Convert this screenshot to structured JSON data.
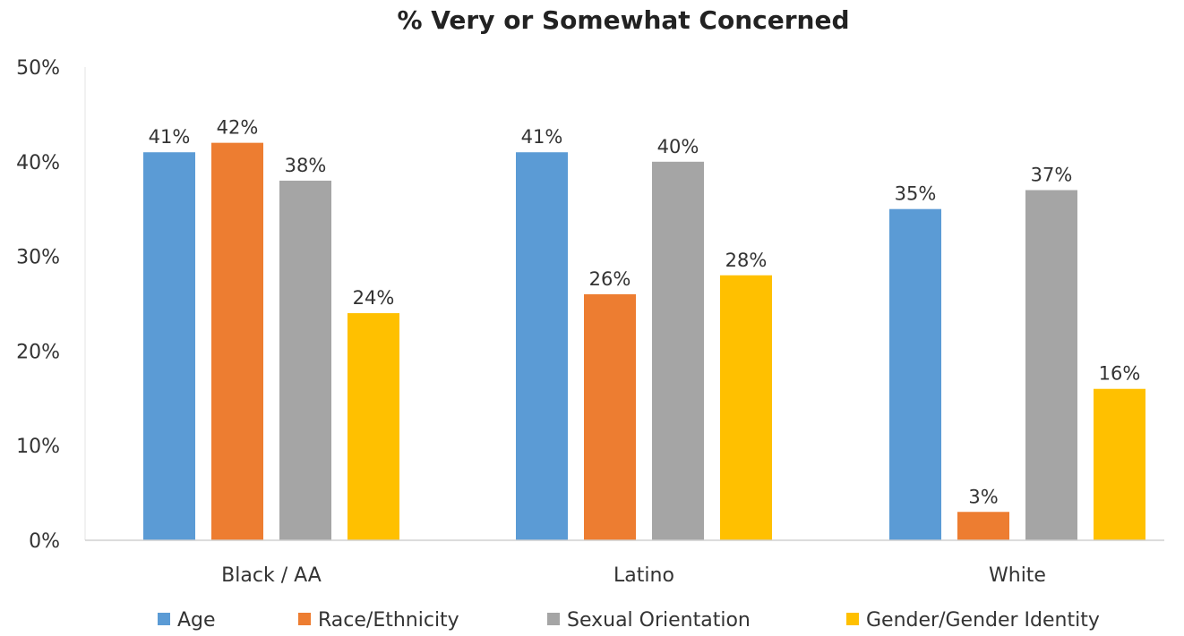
{
  "chart_data": {
    "type": "bar",
    "title": "% Very or Somewhat Concerned",
    "categories": [
      "Black / AA",
      "Latino",
      "White"
    ],
    "series": [
      {
        "name": "Age",
        "color": "#5B9BD5",
        "values": [
          41,
          41,
          35
        ]
      },
      {
        "name": "Race/Ethnicity",
        "color": "#ED7D31",
        "values": [
          42,
          26,
          3
        ]
      },
      {
        "name": "Sexual Orientation",
        "color": "#A5A5A5",
        "values": [
          38,
          40,
          37
        ]
      },
      {
        "name": "Gender/Gender Identity",
        "color": "#FFC000",
        "values": [
          24,
          28,
          16
        ]
      }
    ],
    "value_suffix": "%",
    "ylim": [
      0,
      50
    ],
    "yticks": [
      0,
      10,
      20,
      30,
      40,
      50
    ],
    "ytick_labels": [
      "0%",
      "10%",
      "20%",
      "30%",
      "40%",
      "50%"
    ],
    "grid": false,
    "legend_position": "bottom",
    "xlabel": "",
    "ylabel": ""
  }
}
